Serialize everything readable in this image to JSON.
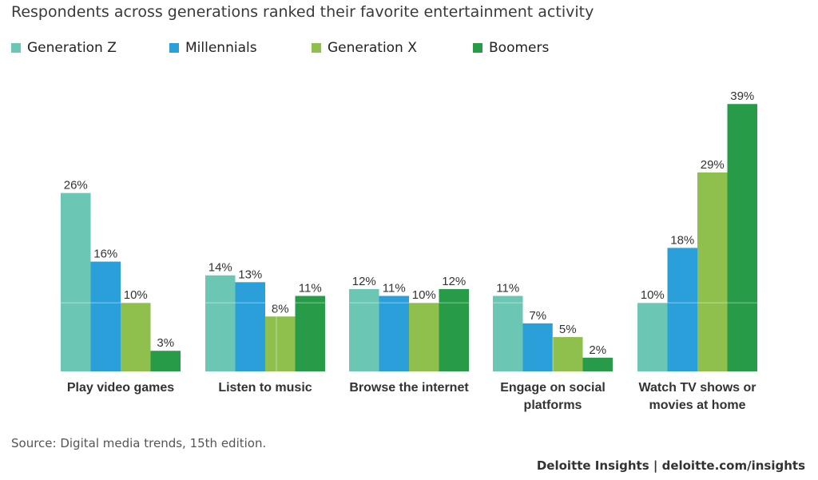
{
  "header": {
    "title": "Respondents across generations ranked their favorite entertainment activity"
  },
  "legend": [
    {
      "label": "Generation Z",
      "color": "#6cc6b4"
    },
    {
      "label": "Millennials",
      "color": "#2b9fd9"
    },
    {
      "label": "Generation X",
      "color": "#8fbf4d"
    },
    {
      "label": "Boomers",
      "color": "#279b48"
    }
  ],
  "chart_data": {
    "type": "bar",
    "title": "Respondents across generations ranked their favorite entertainment activity",
    "categories": [
      [
        "Play video games"
      ],
      [
        "Listen to music"
      ],
      [
        "Browse the internet"
      ],
      [
        "Engage on social",
        "platforms"
      ],
      [
        "Watch TV shows or",
        "movies at home"
      ]
    ],
    "series": [
      {
        "name": "Generation Z",
        "color": "#6cc6b4",
        "values": [
          26,
          14,
          12,
          11,
          10
        ]
      },
      {
        "name": "Millennials",
        "color": "#2b9fd9",
        "values": [
          16,
          13,
          11,
          7,
          18
        ]
      },
      {
        "name": "Generation X",
        "color": "#8fbf4d",
        "values": [
          10,
          8,
          10,
          5,
          29
        ]
      },
      {
        "name": "Boomers",
        "color": "#279b48",
        "values": [
          3,
          11,
          12,
          2,
          39
        ]
      }
    ],
    "value_suffix": "%",
    "ylim": [
      0,
      39
    ],
    "gridlines": [
      10,
      39
    ],
    "legend_position": "top-left",
    "xlabel": "",
    "ylabel": ""
  },
  "footer": {
    "source": "Source: Digital media trends, 15th edition.",
    "brand": "Deloitte Insights | deloitte.com/insights"
  }
}
